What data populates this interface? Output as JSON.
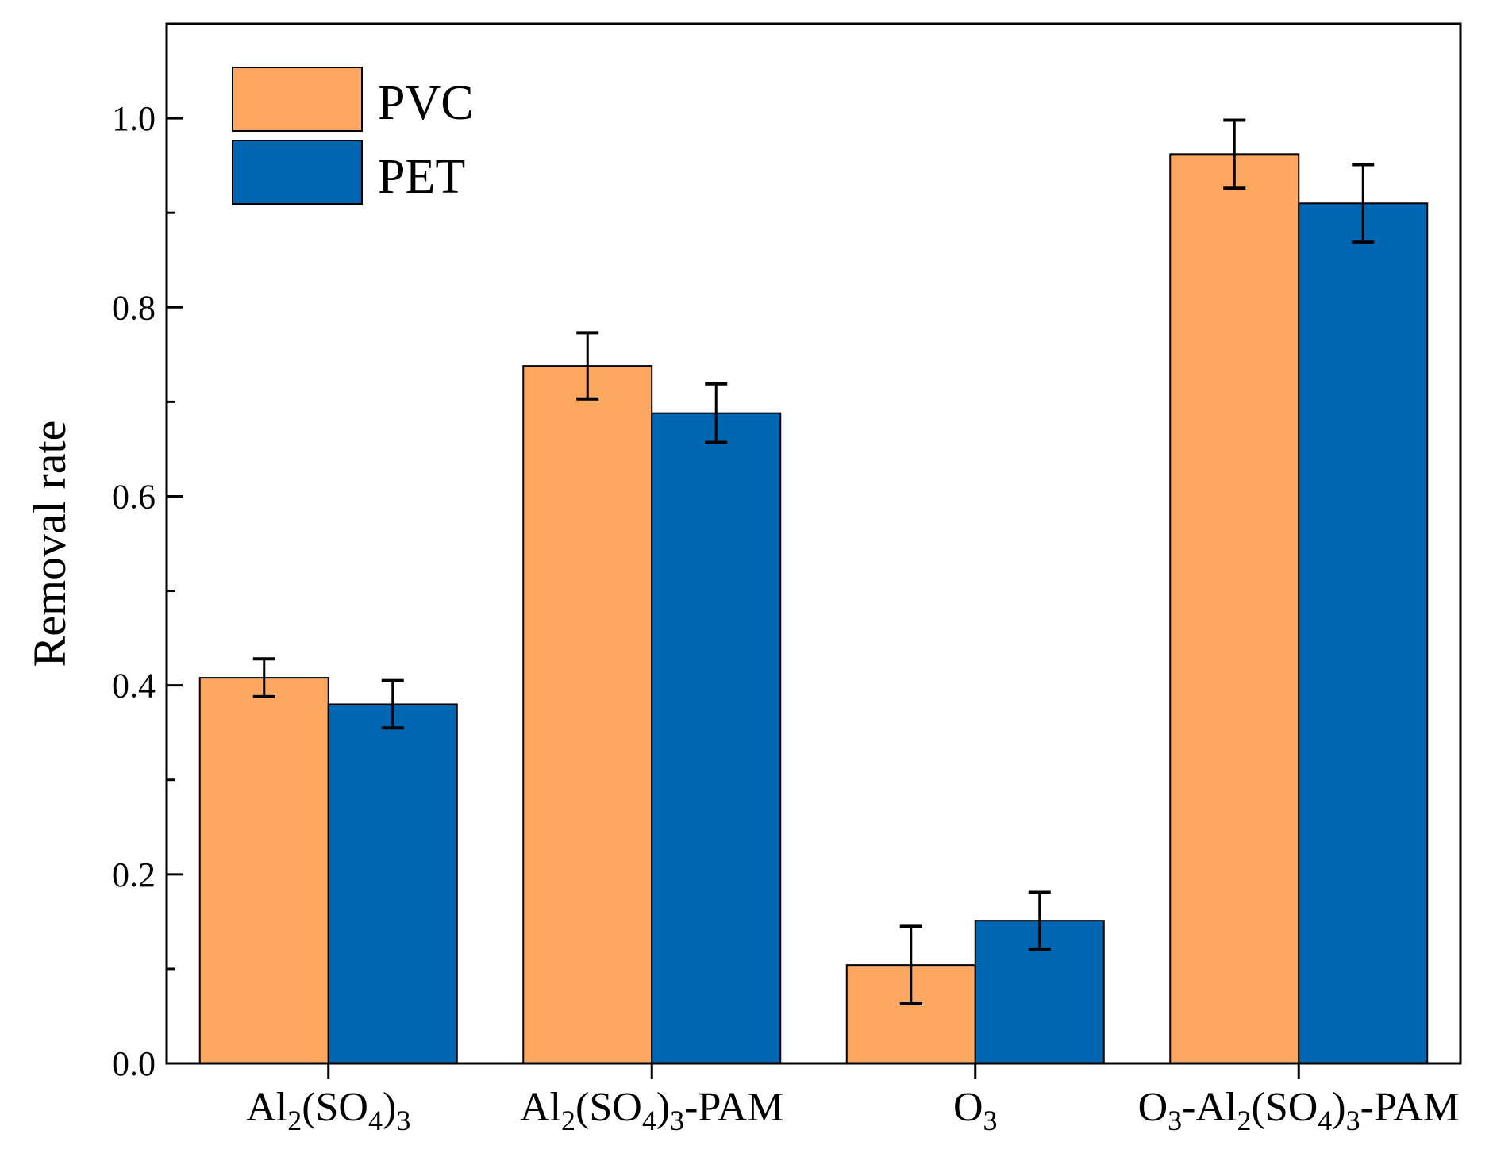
{
  "chart_data": {
    "type": "bar",
    "title": "",
    "xlabel": "",
    "ylabel": "Removal rate",
    "ylim": [
      0,
      1.1
    ],
    "yticks": [
      "0.0",
      "0.2",
      "0.4",
      "0.6",
      "0.8",
      "1.0"
    ],
    "grid": false,
    "legend_position": "top-left",
    "categories": [
      {
        "name": "Al2(SO4)3",
        "parts": [
          [
            "Al",
            ""
          ],
          [
            "2",
            "sub"
          ],
          [
            "(SO",
            ""
          ],
          [
            "4",
            "sub"
          ],
          [
            ")",
            ""
          ],
          [
            "3",
            "sub"
          ]
        ]
      },
      {
        "name": "Al2(SO4)3-PAM",
        "parts": [
          [
            "Al",
            ""
          ],
          [
            "2",
            "sub"
          ],
          [
            "(SO",
            ""
          ],
          [
            "4",
            "sub"
          ],
          [
            ")",
            ""
          ],
          [
            "3",
            "sub"
          ],
          [
            "-PAM",
            ""
          ]
        ]
      },
      {
        "name": "O3",
        "parts": [
          [
            "O",
            ""
          ],
          [
            "3",
            "sub"
          ]
        ]
      },
      {
        "name": "O3-Al2(SO4)3-PAM",
        "parts": [
          [
            "O",
            ""
          ],
          [
            "3",
            "sub"
          ],
          [
            "-Al",
            ""
          ],
          [
            "2",
            "sub"
          ],
          [
            "(SO",
            ""
          ],
          [
            "4",
            "sub"
          ],
          [
            ")",
            ""
          ],
          [
            "3",
            "sub"
          ],
          [
            "-PAM",
            ""
          ]
        ]
      }
    ],
    "series": [
      {
        "name": "PVC",
        "color": "#FDA760",
        "values": [
          0.408,
          0.738,
          0.104,
          0.962
        ],
        "errors": [
          0.02,
          0.035,
          0.041,
          0.036
        ]
      },
      {
        "name": "PET",
        "color": "#0066B1",
        "values": [
          0.38,
          0.688,
          0.151,
          0.91
        ],
        "errors": [
          0.025,
          0.031,
          0.03,
          0.041
        ]
      }
    ]
  }
}
